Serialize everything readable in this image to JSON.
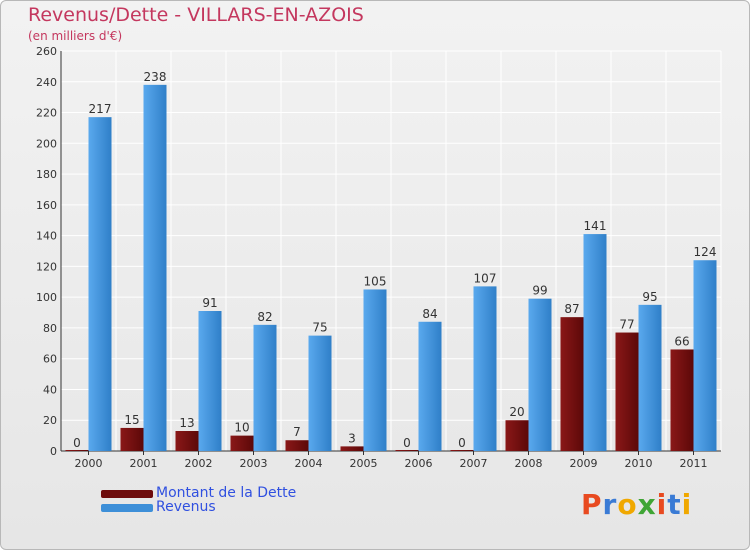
{
  "chart_data": {
    "type": "bar",
    "title": "Revenus/Dette - VILLARS-EN-AZOIS",
    "subtitle": "(en milliers d'€)",
    "categories": [
      "2000",
      "2001",
      "2002",
      "2003",
      "2004",
      "2005",
      "2006",
      "2007",
      "2008",
      "2009",
      "2010",
      "2011"
    ],
    "series": [
      {
        "name": "Montant de la Dette",
        "color": "#7a1010",
        "values": [
          0,
          15,
          13,
          10,
          7,
          3,
          0,
          0,
          20,
          87,
          77,
          66
        ]
      },
      {
        "name": "Revenus",
        "color": "#3d8fd8",
        "values": [
          217,
          238,
          91,
          82,
          75,
          105,
          84,
          107,
          99,
          141,
          95,
          124
        ]
      }
    ],
    "ylim": [
      0,
      260
    ],
    "yticks": [
      0,
      20,
      40,
      60,
      80,
      100,
      120,
      140,
      160,
      180,
      200,
      220,
      240,
      260
    ],
    "grid": true,
    "legend_position": "bottom-left"
  },
  "legend": {
    "dette_label": "Montant de la Dette",
    "revenus_label": "Revenus"
  },
  "logo": {
    "letters": [
      "P",
      "r",
      "o",
      "x",
      "i",
      "t",
      "i"
    ],
    "colors": [
      "#e84a20",
      "#3a7bd5",
      "#f0a800",
      "#3fa535",
      "#e84a20",
      "#3a7bd5",
      "#f0a800"
    ]
  }
}
